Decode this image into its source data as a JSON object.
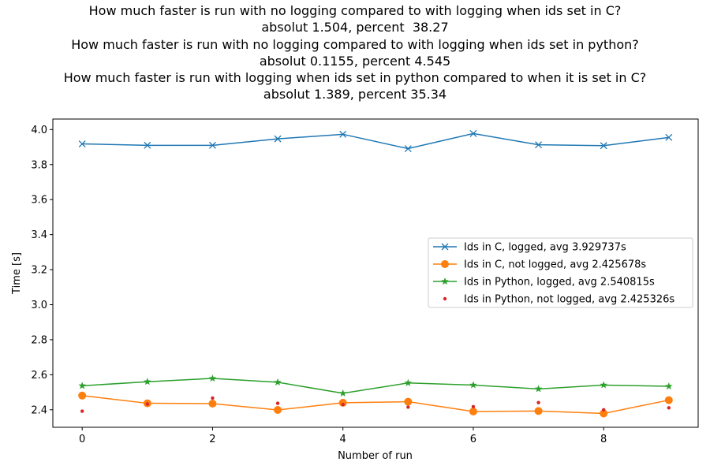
{
  "chart_data": {
    "type": "line",
    "title_lines": [
      "How much faster is run with no logging compared to with logging when ids set in C?",
      "absolut 1.504, percent  38.27",
      "How much faster is run with no logging compared to with logging when ids set in python?",
      "absolut 0.1155, percent 4.545",
      "How much faster is run with logging when ids set in python compared to when it is set in C?",
      "absolut 1.389, percent 35.34"
    ],
    "xlabel": "Number of run",
    "ylabel": "Time [s]",
    "xlim": [
      -0.45,
      9.45
    ],
    "ylim": [
      2.3,
      4.06
    ],
    "xticks": [
      0,
      2,
      4,
      6,
      8
    ],
    "yticks": [
      2.4,
      2.6,
      2.8,
      3.0,
      3.2,
      3.4,
      3.6,
      3.8,
      4.0
    ],
    "ytick_labels": [
      "2.4",
      "2.6",
      "2.8",
      "3.0",
      "3.2",
      "3.4",
      "3.6",
      "3.8",
      "4.0"
    ],
    "x": [
      0,
      1,
      2,
      3,
      4,
      5,
      6,
      7,
      8,
      9
    ],
    "grid": false,
    "legend_position": "center-right",
    "series": [
      {
        "name": "Ids in C, logged, avg 3.929737s",
        "color": "#1f77b4",
        "marker": "x",
        "line": true,
        "values": [
          3.918,
          3.91,
          3.91,
          3.947,
          3.973,
          3.891,
          3.977,
          3.913,
          3.908,
          3.955
        ]
      },
      {
        "name": "Ids in C, not logged, avg 2.425678s",
        "color": "#ff7f0e",
        "marker": "circle",
        "line": true,
        "values": [
          2.481,
          2.437,
          2.435,
          2.399,
          2.44,
          2.446,
          2.39,
          2.393,
          2.379,
          2.455
        ]
      },
      {
        "name": "Ids in Python, logged, avg 2.540815s",
        "color": "#2ca02c",
        "marker": "star",
        "line": true,
        "values": [
          2.537,
          2.56,
          2.579,
          2.557,
          2.494,
          2.553,
          2.541,
          2.519,
          2.541,
          2.534
        ]
      },
      {
        "name": "Ids in Python, not logged, avg 2.425326s",
        "color": "#d62728",
        "marker": "dot",
        "line": false,
        "values": [
          2.392,
          2.433,
          2.467,
          2.437,
          2.43,
          2.415,
          2.418,
          2.441,
          2.4,
          2.411
        ]
      }
    ]
  }
}
